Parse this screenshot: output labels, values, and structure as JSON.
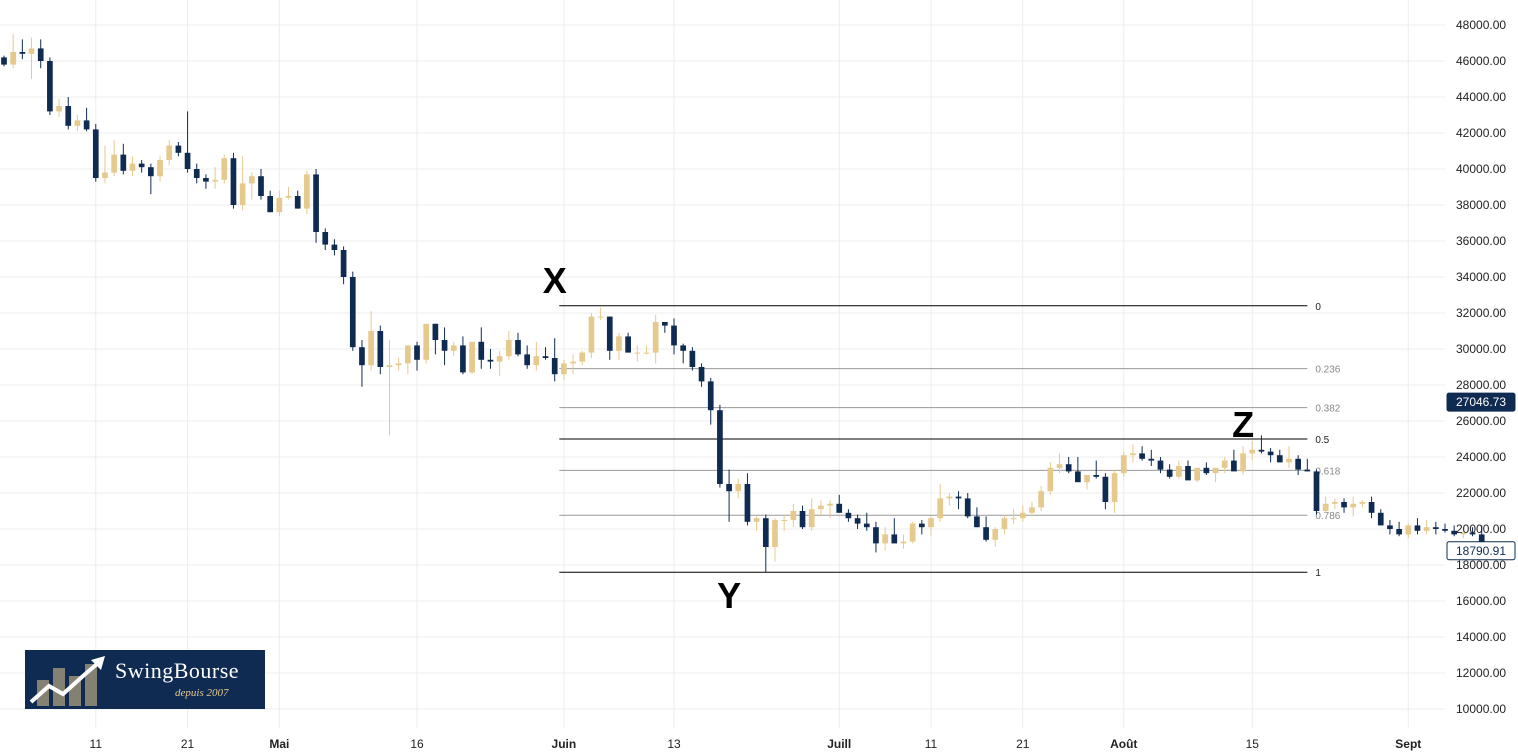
{
  "logo": {
    "brand": "SwingBourse",
    "since": "depuis 2007",
    "icon": "rising-arrow-bars-icon"
  },
  "colors": {
    "bull": "#e6c98d",
    "bear": "#0f2b52",
    "grid": "#ececec",
    "fib_main": "#000000",
    "fib_minor": "#999999"
  },
  "price_tags": [
    {
      "value": 27046.73,
      "label": "27046.73",
      "style": "filled"
    },
    {
      "value": 18790.91,
      "label": "18790.91",
      "style": "outline"
    }
  ],
  "chart_data": {
    "type": "candlestick",
    "y_axis": {
      "min": 9200,
      "max": 49100,
      "position": "right",
      "ticks": [
        10000,
        12000,
        14000,
        16000,
        18000,
        20000,
        22000,
        24000,
        26000,
        28000,
        30000,
        32000,
        34000,
        36000,
        38000,
        40000,
        42000,
        44000,
        46000,
        48000
      ],
      "tick_labels": [
        "10000.00",
        "12000.00",
        "14000.00",
        "16000.00",
        "18000.00",
        "20000.00",
        "22000.00",
        "24000.00",
        "26000.00",
        "28000.00",
        "30000.00",
        "32000.00",
        "34000.00",
        "36000.00",
        "38000.00",
        "40000.00",
        "42000.00",
        "44000.00",
        "46000.00",
        "48000.00"
      ]
    },
    "x_axis": {
      "start_day": 0,
      "end_day": 160,
      "ticks": [
        {
          "day": 10,
          "label": "11",
          "bold": false
        },
        {
          "day": 20,
          "label": "21",
          "bold": false
        },
        {
          "day": 30,
          "label": "Mai",
          "bold": true
        },
        {
          "day": 45,
          "label": "16",
          "bold": false
        },
        {
          "day": 61,
          "label": "Juin",
          "bold": true
        },
        {
          "day": 73,
          "label": "13",
          "bold": false
        },
        {
          "day": 91,
          "label": "Juill",
          "bold": true
        },
        {
          "day": 101,
          "label": "11",
          "bold": false
        },
        {
          "day": 111,
          "label": "21",
          "bold": false
        },
        {
          "day": 122,
          "label": "Août",
          "bold": true
        },
        {
          "day": 136,
          "label": "15",
          "bold": false
        },
        {
          "day": 153,
          "label": "Sept",
          "bold": true
        }
      ]
    },
    "candles": [
      [
        46200,
        46300,
        45700,
        45800
      ],
      [
        45800,
        47500,
        45600,
        46500
      ],
      [
        46500,
        47200,
        46100,
        46400
      ],
      [
        46400,
        47300,
        45000,
        46700
      ],
      [
        46700,
        47200,
        45600,
        46000
      ],
      [
        46000,
        46200,
        43000,
        43200
      ],
      [
        43200,
        43900,
        42900,
        43500
      ],
      [
        43500,
        44000,
        42200,
        42400
      ],
      [
        42400,
        43000,
        42100,
        42700
      ],
      [
        42700,
        43400,
        42100,
        42200
      ],
      [
        42200,
        42500,
        39300,
        39500
      ],
      [
        39500,
        41300,
        39200,
        39800
      ],
      [
        39800,
        41600,
        39600,
        40800
      ],
      [
        40800,
        41400,
        39700,
        39900
      ],
      [
        39900,
        40700,
        39600,
        40300
      ],
      [
        40300,
        40500,
        39800,
        40100
      ],
      [
        40100,
        40300,
        38600,
        39600
      ],
      [
        39600,
        40700,
        39300,
        40500
      ],
      [
        40500,
        41600,
        40200,
        41300
      ],
      [
        41300,
        41500,
        40700,
        40900
      ],
      [
        40900,
        43200,
        39800,
        40000
      ],
      [
        40000,
        40300,
        39200,
        39500
      ],
      [
        39500,
        39700,
        38900,
        39300
      ],
      [
        39300,
        40100,
        38900,
        39400
      ],
      [
        39400,
        40800,
        39200,
        40600
      ],
      [
        40600,
        40900,
        37800,
        38000
      ],
      [
        38000,
        40700,
        37700,
        39200
      ],
      [
        39200,
        39800,
        38300,
        39600
      ],
      [
        39600,
        40000,
        38300,
        38500
      ],
      [
        38500,
        38800,
        37600,
        37600
      ],
      [
        37600,
        38800,
        37400,
        38400
      ],
      [
        38400,
        39000,
        38300,
        38500
      ],
      [
        38500,
        38800,
        37800,
        37800
      ],
      [
        37800,
        39900,
        37500,
        39700
      ],
      [
        39700,
        40000,
        35900,
        36500
      ],
      [
        36500,
        36700,
        35500,
        35800
      ],
      [
        35800,
        36100,
        35200,
        35500
      ],
      [
        35500,
        35700,
        33600,
        34000
      ],
      [
        34000,
        34300,
        29900,
        30100
      ],
      [
        30100,
        30500,
        27900,
        29100
      ],
      [
        29100,
        32100,
        28800,
        31000
      ],
      [
        31000,
        31300,
        28600,
        29000
      ],
      [
        29000,
        30500,
        25200,
        29100
      ],
      [
        29100,
        29500,
        28800,
        29200
      ],
      [
        29200,
        30100,
        28600,
        30200
      ],
      [
        30200,
        30400,
        28800,
        29400
      ],
      [
        29400,
        31400,
        29200,
        31400
      ],
      [
        31400,
        31400,
        29700,
        30500
      ],
      [
        30500,
        31200,
        29100,
        29900
      ],
      [
        29900,
        30400,
        29600,
        30200
      ],
      [
        30200,
        30700,
        28600,
        28700
      ],
      [
        28700,
        30400,
        28600,
        30400
      ],
      [
        30400,
        31200,
        28900,
        29400
      ],
      [
        29400,
        30000,
        28900,
        29300
      ],
      [
        29300,
        29900,
        28500,
        29600
      ],
      [
        29600,
        31000,
        29400,
        30500
      ],
      [
        30500,
        30900,
        29600,
        29700
      ],
      [
        29700,
        30200,
        28900,
        29100
      ],
      [
        29100,
        30400,
        28800,
        29600
      ],
      [
        29600,
        30100,
        29400,
        29500
      ],
      [
        29500,
        30600,
        28200,
        28600
      ],
      [
        28600,
        29400,
        28300,
        29200
      ],
      [
        29200,
        29700,
        28600,
        29300
      ],
      [
        29300,
        29900,
        29100,
        29800
      ],
      [
        29800,
        32000,
        29500,
        31800
      ],
      [
        31800,
        32300,
        31600,
        31800
      ],
      [
        31800,
        31800,
        29400,
        29900
      ],
      [
        29900,
        30900,
        29400,
        30700
      ],
      [
        30700,
        30900,
        29800,
        29800
      ],
      [
        29800,
        30200,
        29300,
        29800
      ],
      [
        29800,
        30200,
        29700,
        29800
      ],
      [
        29800,
        31900,
        29200,
        31500
      ],
      [
        31500,
        31500,
        30900,
        31300
      ],
      [
        31300,
        31700,
        29700,
        30200
      ],
      [
        30200,
        30300,
        29200,
        29900
      ],
      [
        29900,
        30100,
        28800,
        29000
      ],
      [
        29000,
        29200,
        27900,
        28200
      ],
      [
        28200,
        28400,
        25800,
        26600
      ],
      [
        26600,
        26900,
        22300,
        22500
      ],
      [
        22500,
        23300,
        20400,
        22100
      ],
      [
        22100,
        22800,
        21700,
        22500
      ],
      [
        22500,
        23100,
        20200,
        20400
      ],
      [
        20400,
        20700,
        19900,
        20600
      ],
      [
        20600,
        20800,
        17600,
        19000
      ],
      [
        19000,
        20600,
        18200,
        20500
      ],
      [
        20500,
        20800,
        19900,
        20500
      ],
      [
        20500,
        21400,
        20100,
        21000
      ],
      [
        21000,
        21300,
        20000,
        20100
      ],
      [
        20100,
        21700,
        19900,
        21100
      ],
      [
        21100,
        21600,
        20700,
        21300
      ],
      [
        21300,
        21600,
        20600,
        21400
      ],
      [
        21400,
        21900,
        20900,
        20900
      ],
      [
        20900,
        21100,
        20400,
        20600
      ],
      [
        20600,
        20800,
        20000,
        20300
      ],
      [
        20300,
        20900,
        19900,
        20100
      ],
      [
        20100,
        20400,
        18700,
        19200
      ],
      [
        19200,
        20100,
        18800,
        19700
      ],
      [
        19700,
        20600,
        19200,
        19200
      ],
      [
        19200,
        19700,
        18900,
        19300
      ],
      [
        19300,
        20400,
        19200,
        20300
      ],
      [
        20300,
        20500,
        19700,
        20100
      ],
      [
        20100,
        20700,
        19600,
        20600
      ],
      [
        20600,
        22500,
        20400,
        21700
      ],
      [
        21700,
        22000,
        21300,
        21800
      ],
      [
        21800,
        22100,
        21100,
        21700
      ],
      [
        21700,
        22000,
        20600,
        20700
      ],
      [
        20700,
        21200,
        20100,
        20100
      ],
      [
        20100,
        20700,
        19300,
        19400
      ],
      [
        19400,
        20100,
        19000,
        20000
      ],
      [
        20000,
        20800,
        19700,
        20600
      ],
      [
        20600,
        21100,
        20300,
        20600
      ],
      [
        20600,
        21300,
        20400,
        20900
      ],
      [
        20900,
        21500,
        20700,
        21200
      ],
      [
        21200,
        22400,
        21000,
        22100
      ],
      [
        22100,
        23700,
        21900,
        23400
      ],
      [
        23400,
        24200,
        23100,
        23600
      ],
      [
        23600,
        24000,
        23100,
        23200
      ],
      [
        23200,
        24000,
        22800,
        22600
      ],
      [
        22600,
        22700,
        22200,
        23000
      ],
      [
        23000,
        23800,
        22800,
        22900
      ],
      [
        22900,
        23100,
        21100,
        21500
      ],
      [
        21500,
        23300,
        20900,
        23100
      ],
      [
        23100,
        24300,
        22900,
        24100
      ],
      [
        24100,
        24700,
        23700,
        24200
      ],
      [
        24200,
        24600,
        23800,
        23900
      ],
      [
        23900,
        24400,
        23500,
        23800
      ],
      [
        23800,
        24000,
        23100,
        23300
      ],
      [
        23300,
        23600,
        22800,
        22900
      ],
      [
        22900,
        23800,
        22800,
        23500
      ],
      [
        23500,
        23800,
        22900,
        22700
      ],
      [
        22700,
        23300,
        22600,
        23400
      ],
      [
        23400,
        23700,
        23000,
        23100
      ],
      [
        23100,
        23400,
        22600,
        23400
      ],
      [
        23400,
        24000,
        23100,
        23800
      ],
      [
        23800,
        24400,
        23400,
        23200
      ],
      [
        23200,
        24600,
        23000,
        24200
      ],
      [
        24200,
        24900,
        23800,
        24400
      ],
      [
        24400,
        25200,
        24200,
        24300
      ],
      [
        24300,
        24500,
        23700,
        24100
      ],
      [
        24100,
        24400,
        23800,
        23700
      ],
      [
        23700,
        24600,
        23400,
        23900
      ],
      [
        23900,
        24100,
        23000,
        23300
      ],
      [
        23300,
        23900,
        23200,
        23200
      ],
      [
        23200,
        23300,
        20800,
        21000
      ],
      [
        21000,
        21800,
        20900,
        21400
      ],
      [
        21400,
        21700,
        21100,
        21500
      ],
      [
        21500,
        21700,
        20900,
        21200
      ],
      [
        21200,
        21800,
        20700,
        21400
      ],
      [
        21400,
        21600,
        21200,
        21500
      ],
      [
        21500,
        21800,
        20600,
        20900
      ],
      [
        20900,
        21100,
        20200,
        20200
      ],
      [
        20200,
        20500,
        19700,
        20000
      ],
      [
        20000,
        20400,
        19600,
        19700
      ],
      [
        19700,
        20300,
        19500,
        20200
      ],
      [
        20200,
        20600,
        19700,
        19900
      ],
      [
        19900,
        20500,
        19700,
        20100
      ],
      [
        20100,
        20400,
        19700,
        20000
      ],
      [
        20000,
        20300,
        19800,
        19900
      ],
      [
        19900,
        20200,
        19600,
        19700
      ],
      [
        19700,
        20100,
        19500,
        19800
      ],
      [
        19800,
        20100,
        19600,
        19700
      ],
      [
        19700,
        20200,
        18600,
        18800
      ]
    ],
    "fibonacci": {
      "high": 32400,
      "low": 17600,
      "start_day": 60.5,
      "end_day": 142,
      "levels": [
        {
          "ratio": 0,
          "label": "0",
          "major": true
        },
        {
          "ratio": 0.236,
          "label": "0.236",
          "major": false
        },
        {
          "ratio": 0.382,
          "label": "0.382",
          "major": false
        },
        {
          "ratio": 0.5,
          "label": "0.5",
          "major": true
        },
        {
          "ratio": 0.618,
          "label": "0.618",
          "major": false
        },
        {
          "ratio": 0.786,
          "label": "0.786",
          "major": false
        },
        {
          "ratio": 1,
          "label": "1",
          "major": true
        }
      ]
    },
    "wave_labels": [
      {
        "text": "X",
        "day": 60,
        "price": 33900
      },
      {
        "text": "Y",
        "day": 79,
        "price": 16400
      },
      {
        "text": "Z",
        "day": 135,
        "price": 25900
      }
    ]
  }
}
